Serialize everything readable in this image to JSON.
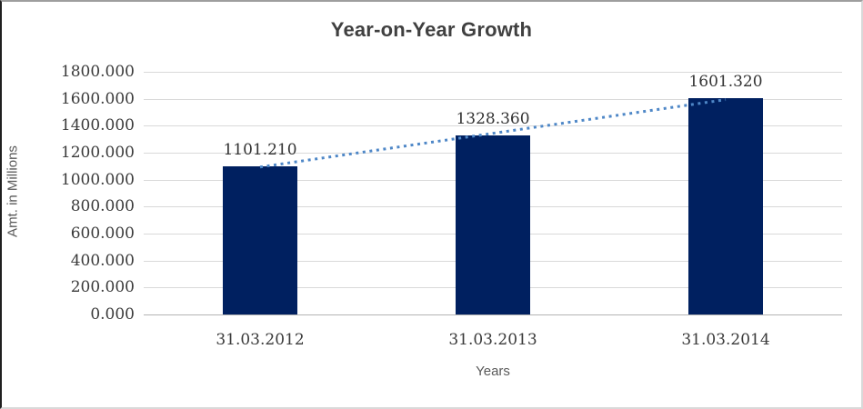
{
  "chart_data": {
    "type": "bar",
    "title": "Year-on-Year Growth",
    "xlabel": "Years",
    "ylabel": "Amt. in Millions",
    "categories": [
      "31.03.2012",
      "31.03.2013",
      "31.03.2014"
    ],
    "values": [
      1101.21,
      1328.36,
      1601.32
    ],
    "value_labels": [
      "1101.210",
      "1328.360",
      "1601.320"
    ],
    "ylim": [
      0,
      1800
    ],
    "ytick_values": [
      0,
      200,
      400,
      600,
      800,
      1000,
      1200,
      1400,
      1600,
      1800
    ],
    "ytick_labels": [
      "0.000",
      "200.000",
      "400.000",
      "600.000",
      "800.000",
      "1000.000",
      "1200.000",
      "1400.000",
      "1600.000",
      "1800.000"
    ],
    "grid": true,
    "legend": "none",
    "trendline": {
      "type": "linear",
      "style": "dotted"
    },
    "colors": {
      "bar": "#002060",
      "trendline": "#4e87c7",
      "gridline": "#d9d9d9",
      "baseline": "#b3b3b3",
      "title_text": "#404040",
      "tick_text": "#3a3a3a",
      "axis_title_text": "#595959"
    }
  }
}
